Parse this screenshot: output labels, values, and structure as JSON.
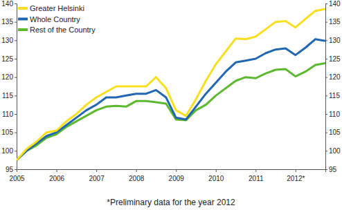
{
  "chart_data": {
    "type": "line",
    "categories": [
      "2005",
      null,
      null,
      null,
      "2006",
      null,
      null,
      null,
      "2007",
      null,
      null,
      null,
      "2008",
      null,
      null,
      null,
      "2009",
      null,
      null,
      null,
      "2010",
      null,
      null,
      null,
      "2011",
      null,
      null,
      null,
      "2012*",
      null,
      null,
      null
    ],
    "series": [
      {
        "name": "Greater Helsinki",
        "color": "#f7df1e",
        "values": [
          97.5,
          100.5,
          102.5,
          105,
          105.5,
          108,
          110,
          112.5,
          114.5,
          116,
          117.5,
          117.5,
          117.5,
          117.5,
          120,
          117,
          111,
          109.5,
          114,
          119,
          123.5,
          127,
          130.5,
          130.3,
          131,
          133,
          135,
          135.2,
          133.5,
          135.8,
          138,
          138.5
        ]
      },
      {
        "name": "Whole Country",
        "color": "#2066b0",
        "values": [
          97.5,
          100,
          102,
          104,
          105,
          107,
          109,
          111,
          112.5,
          114.5,
          114.5,
          115,
          115.5,
          115.5,
          116.5,
          114.5,
          109,
          108.5,
          112,
          115.5,
          118.5,
          121.5,
          124,
          124.5,
          125,
          126.5,
          127.5,
          127.8,
          126,
          128,
          130.3,
          129.8
        ]
      },
      {
        "name": "Rest of the Country",
        "color": "#5cb82e",
        "values": [
          97.5,
          100,
          101.5,
          103.5,
          104.5,
          106.5,
          108,
          109.5,
          111,
          112,
          112.2,
          112,
          113.5,
          113.5,
          113.2,
          112.8,
          108.5,
          108.3,
          111,
          112.5,
          115,
          117,
          119,
          120,
          119.7,
          121,
          122,
          122.2,
          120.2,
          121.5,
          123.3,
          123.8
        ]
      }
    ],
    "ylim": [
      95,
      140
    ],
    "yticks": [
      95,
      100,
      105,
      110,
      115,
      120,
      125,
      130,
      135,
      140
    ],
    "y2lim": [
      95,
      140
    ],
    "y2ticks": [
      95,
      100,
      105,
      110,
      115,
      120,
      125,
      130,
      135,
      140
    ],
    "annotations": [
      "*Preliminary data for the year 2012"
    ],
    "grid": false,
    "legend": "upper left"
  }
}
